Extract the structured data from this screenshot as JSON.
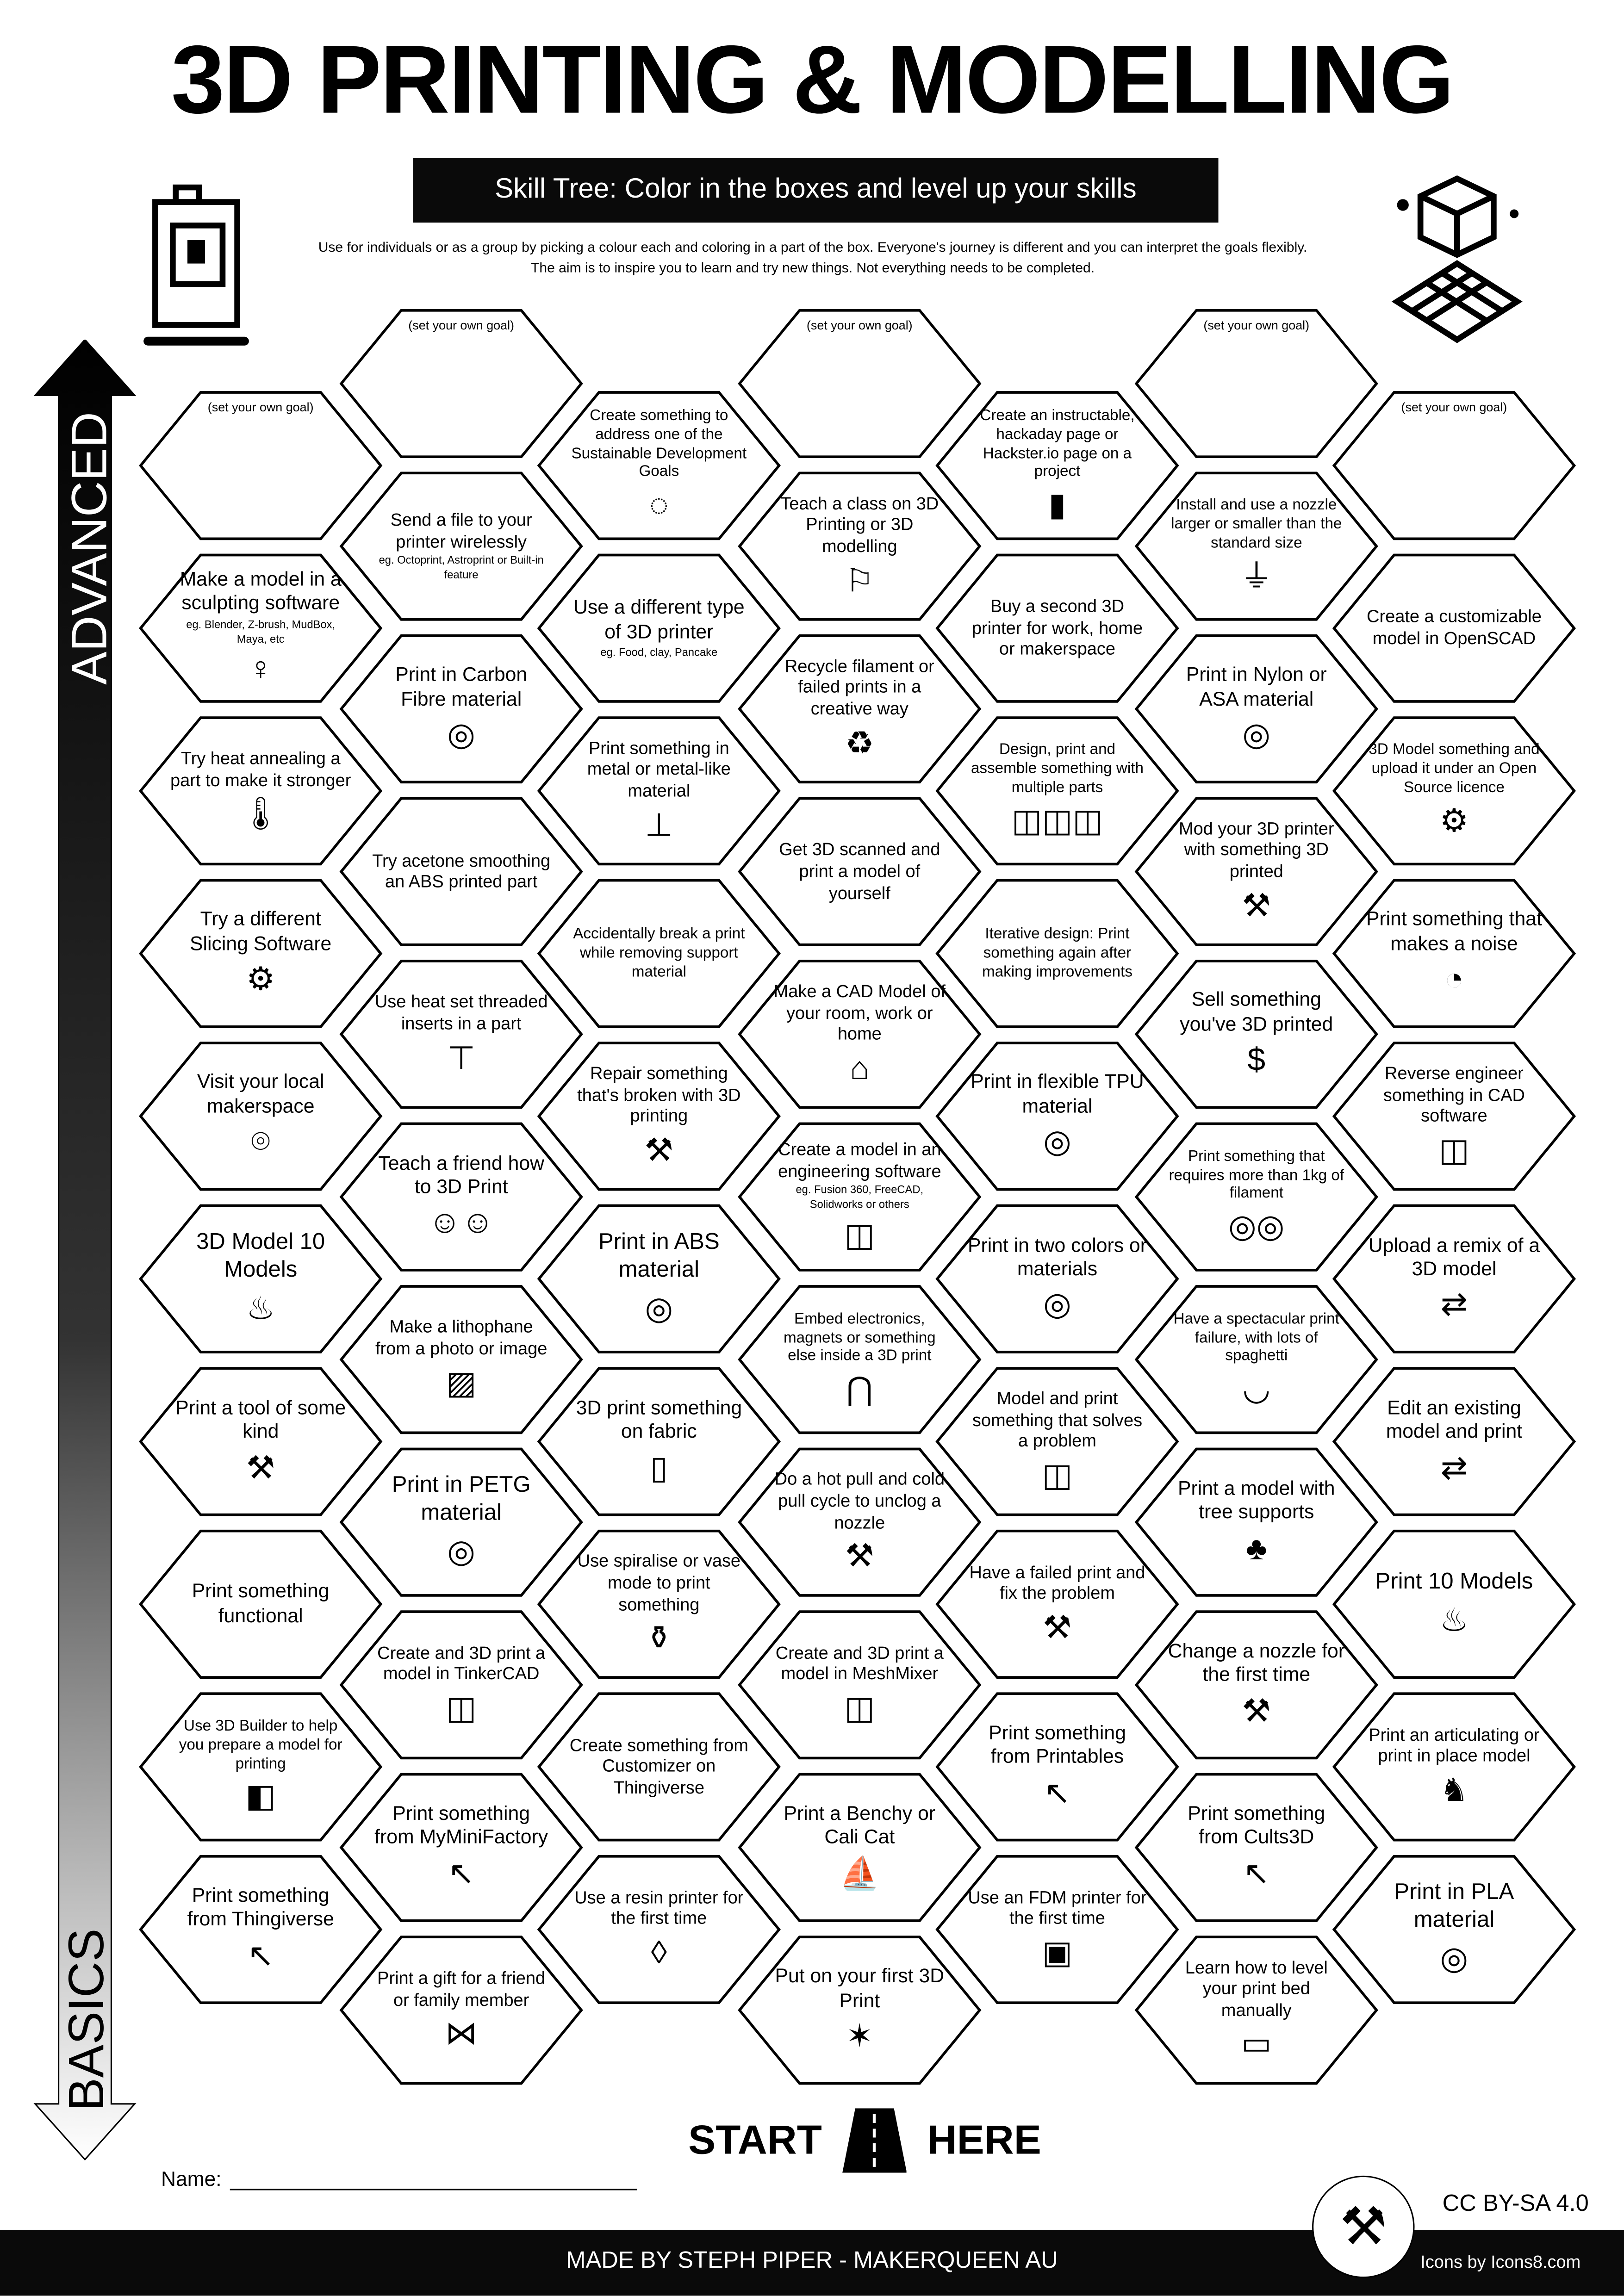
{
  "header": {
    "title": "3D PRINTING & MODELLING",
    "subtitle": "Skill Tree:  Color in the boxes and level up your skills",
    "description": "Use for individuals or as a group by picking a colour each and coloring in a part of the box.  Everyone's journey is different and you can interpret the goals flexibly.  The aim is to inspire you to learn and try new things. Not everything needs to be completed."
  },
  "axis": {
    "top": "ADVANCED",
    "bottom": "BASICS"
  },
  "goal_label": "(set your own goal)",
  "columns": [
    [
      {
        "goal": true
      },
      {
        "title": "Make a model in a sculpting software",
        "sub": "eg. Blender, Z-brush, MudBox, Maya, etc",
        "icon": "statue-icon"
      },
      {
        "title": "Try heat annealing a part to make it stronger",
        "icon": "thermometer-icon"
      },
      {
        "title": "Try a different Slicing Software",
        "icon": "laptop-settings-icon"
      },
      {
        "title": "Visit your local makerspace",
        "icon": "location-pin-icon"
      },
      {
        "title": "3D Model 10 Models",
        "icon": "cake-icon"
      },
      {
        "title": "Print a tool of some kind",
        "icon": "tools-icon"
      },
      {
        "title": "Print something functional"
      },
      {
        "title": "Use 3D Builder to help you prepare a model for printing",
        "icon": "3d-builder-icon"
      },
      {
        "title": "Print something from Thingiverse",
        "icon": "cursor-icon"
      }
    ],
    [
      {
        "goal": true
      },
      {
        "title": "Send a file to your printer wirelessly",
        "sub": "eg. Octoprint, Astroprint or Built-in feature"
      },
      {
        "title": "Print in Carbon Fibre material",
        "icon": "spool-icon"
      },
      {
        "title": "Try acetone smoothing an ABS printed part"
      },
      {
        "title": "Use heat set threaded inserts in a part",
        "icon": "screw-icon"
      },
      {
        "title": "Teach a friend how to 3D Print",
        "icon": "people-icon"
      },
      {
        "title": "Make a lithophane from a photo or image",
        "icon": "picture-icon"
      },
      {
        "title": "Print in PETG material",
        "icon": "spool-icon"
      },
      {
        "title": "Create and 3D print a model in TinkerCAD",
        "icon": "cube-icon"
      },
      {
        "title": "Print something from MyMiniFactory",
        "icon": "cursor-icon"
      },
      {
        "title": "Print a gift for a friend or family member",
        "icon": "gift-bow-icon"
      }
    ],
    [
      {
        "title": "Create something to address one of the Sustainable Development Goals",
        "icon": "sdg-wheel-icon"
      },
      {
        "title": "Use a different type of 3D printer",
        "sub": "eg. Food, clay, Pancake"
      },
      {
        "title": "Print something in metal or metal-like material",
        "icon": "anvil-icon"
      },
      {
        "title": "Accidentally break a print while removing support material"
      },
      {
        "title": "Repair something that's broken with 3D printing",
        "icon": "tools-icon"
      },
      {
        "title": "Print in ABS material",
        "icon": "spool-icon"
      },
      {
        "title": "3D print something on fabric",
        "icon": "fabric-icon"
      },
      {
        "title": "Use spiralise or vase mode to print something",
        "icon": "vase-icon"
      },
      {
        "title": "Create something from Customizer on Thingiverse"
      },
      {
        "title": "Use a resin printer for the first time",
        "icon": "drop-icon"
      }
    ],
    [
      {
        "goal": true
      },
      {
        "title": "Teach a class on 3D Printing or 3D modelling",
        "icon": "teacher-icon"
      },
      {
        "title": "Recycle filament or failed prints in a creative way",
        "icon": "recycle-icon"
      },
      {
        "title": "Get 3D scanned and print a model of yourself"
      },
      {
        "title": "Make a CAD Model of your room, work or home",
        "icon": "house-icon"
      },
      {
        "title": "Create a model in an engineering software",
        "sub": "eg. Fusion 360, FreeCAD, Solidworks or others",
        "icon": "cube-icon"
      },
      {
        "title": "Embed electronics, magnets or something else inside a 3D print",
        "icon": "led-icon"
      },
      {
        "title": "Do a hot pull and cold pull cycle to unclog a nozzle",
        "icon": "tools-icon"
      },
      {
        "title": "Create and 3D print a model in MeshMixer",
        "icon": "cube-icon"
      },
      {
        "title": "Print a Benchy or Cali Cat",
        "icon": "boat-icon"
      },
      {
        "title": "Put on your first 3D Print",
        "icon": "party-popper-icon"
      }
    ],
    [
      {
        "title": "Create an instructable, hackaday page or Hackster.io page on a project",
        "icon": "file-icon"
      },
      {
        "title": "Buy a second 3D printer for work, home or makerspace"
      },
      {
        "title": "Design, print and assemble something with multiple parts",
        "icon": "cubes-icon"
      },
      {
        "title": "Iterative design: Print something again after making improvements"
      },
      {
        "title": "Print in flexible TPU material",
        "icon": "spool-icon"
      },
      {
        "title": "Print in two colors or materials",
        "icon": "spool-icon"
      },
      {
        "title": "Model and print something that solves a problem",
        "icon": "cube-icon"
      },
      {
        "title": "Have a failed print and fix the problem",
        "icon": "tools-icon"
      },
      {
        "title": "Print something from Printables",
        "icon": "cursor-icon"
      },
      {
        "title": "Use an FDM printer for the first time",
        "icon": "printer-icon"
      }
    ],
    [
      {
        "goal": true
      },
      {
        "title": "Install and use a nozzle larger or smaller than the standard size",
        "icon": "nozzle-icon"
      },
      {
        "title": "Print in Nylon or ASA material",
        "icon": "spool-icon"
      },
      {
        "title": "Mod your 3D printer with something 3D printed",
        "icon": "tools-icon"
      },
      {
        "title": "Sell something you've 3D printed",
        "icon": "money-bag-icon"
      },
      {
        "title": "Print something that requires more than 1kg of filament",
        "icon": "spools-icon"
      },
      {
        "title": "Have a spectacular print failure, with lots of spaghetti",
        "icon": "noodles-icon"
      },
      {
        "title": "Print a model with tree supports",
        "icon": "tree-icon"
      },
      {
        "title": "Change a nozzle for the first time",
        "icon": "tools-icon"
      },
      {
        "title": "Print something from Cults3D",
        "icon": "cursor-icon"
      },
      {
        "title": "Learn how to level your print bed manually",
        "icon": "ruler-icon"
      }
    ],
    [
      {
        "goal": true
      },
      {
        "title": "Create a customizable model in OpenSCAD"
      },
      {
        "title": "3D Model something and upload it under an Open Source licence",
        "icon": "gear-icon"
      },
      {
        "title": "Print something that makes a noise",
        "icon": "whistle-icon"
      },
      {
        "title": "Reverse engineer something in CAD software",
        "icon": "cube-icon"
      },
      {
        "title": "Upload a remix of a 3D model",
        "icon": "remix-icon"
      },
      {
        "title": "Edit an existing model and print",
        "icon": "remix-icon"
      },
      {
        "title": "Print 10 Models",
        "icon": "cake-icon"
      },
      {
        "title": "Print an articulating or print in place model",
        "icon": "dragon-icon"
      },
      {
        "title": "Print in PLA material",
        "icon": "spool-icon"
      }
    ]
  ],
  "start": {
    "left": "START",
    "right": "HERE"
  },
  "name_label": "Name:",
  "footer": {
    "made_by": "MADE BY STEPH PIPER  -  MAKERQUEEN AU",
    "license": "CC BY-SA 4.0",
    "icons_credit": "Icons by Icons8.com"
  }
}
